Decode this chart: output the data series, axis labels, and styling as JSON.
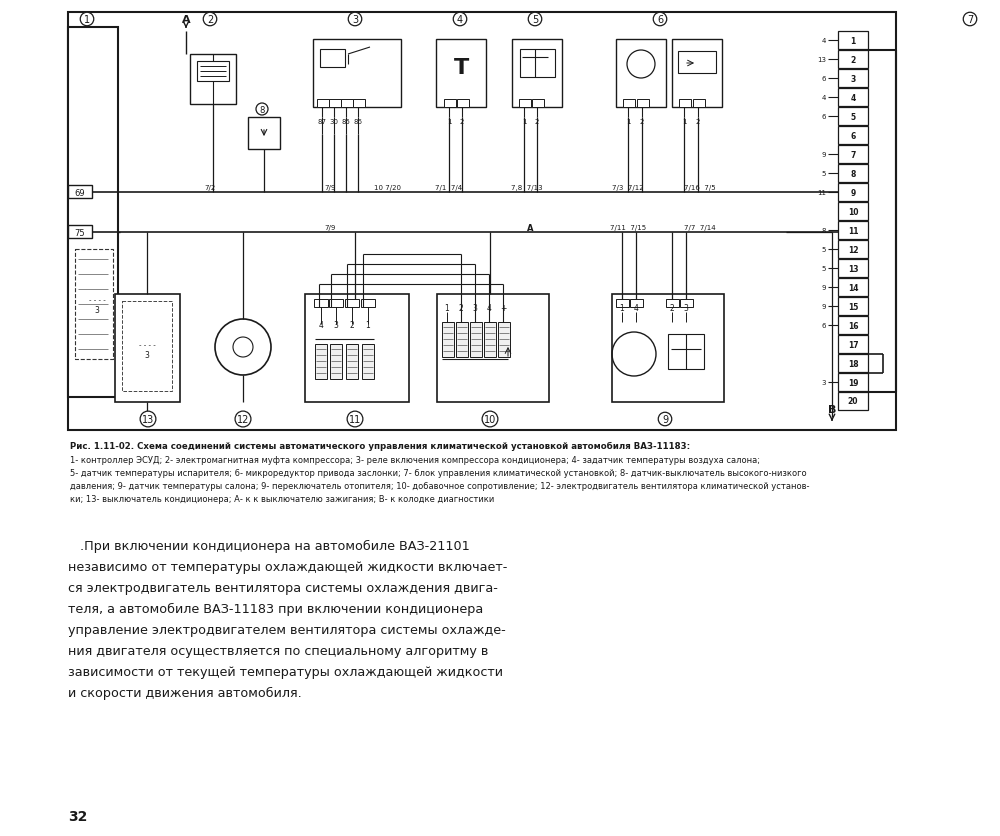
{
  "bg_color": "#ffffff",
  "border_color": "#1a1a1a",
  "line_color": "#1a1a1a",
  "fig_width": 10.0,
  "fig_height": 8.37,
  "caption_bold": "Рис. 1.11-02. Схема соединений системы автоматического управления климатической установкой автомобиля ВАЗ-11183:",
  "caption_line2": "1- контроллер ЭСУД; 2- электромагнитная муфта компрессора; 3- реле включения компрессора кондиционера; 4- задатчик температуры воздуха салона;",
  "caption_line3": "5- датчик температуры испарителя; 6- микроредуктор привода заслонки; 7- блок управления климатической установкой; 8- датчик-выключатель высокого-низкого",
  "caption_line4": "давления; 9- датчик температуры салона; 9- переключатель отопителя; 10- добавочное сопротивление; 12- электродвигатель вентилятора климатической установ-",
  "caption_line5": "ки; 13- выключатель кондиционера; А- к к выключателю зажигания; В- к колодке диагностики",
  "body_lines": [
    "   .При включении кондиционера на автомобиле ВАЗ-21101",
    "независимо от температуры охлаждающей жидкости включает-",
    "ся электродвигатель вентилятора системы охлаждения двига-",
    "теля, а автомобиле ВАЗ-11183 при включении кондиционера",
    "управление электродвигателем вентилятора системы охлажде-",
    "ния двигателя осуществляется по специальному алгоритму в",
    "зависимости от текущей температуры охлаждающей жидкости",
    "и скорости движения автомобиля."
  ],
  "page_number": "32",
  "connector7_left_nums": [
    "4",
    "13",
    "6",
    "4",
    "6",
    "",
    "9",
    "5",
    "11",
    "",
    "8",
    "5",
    "5",
    "9",
    "9",
    "6",
    "",
    "",
    "3",
    ""
  ],
  "connector7_right_nums": [
    "1",
    "2",
    "3",
    "4",
    "5",
    "6",
    "7",
    "8",
    "9",
    "10",
    "11",
    "12",
    "13",
    "14",
    "15",
    "16",
    "17",
    "18",
    "19",
    "20"
  ]
}
